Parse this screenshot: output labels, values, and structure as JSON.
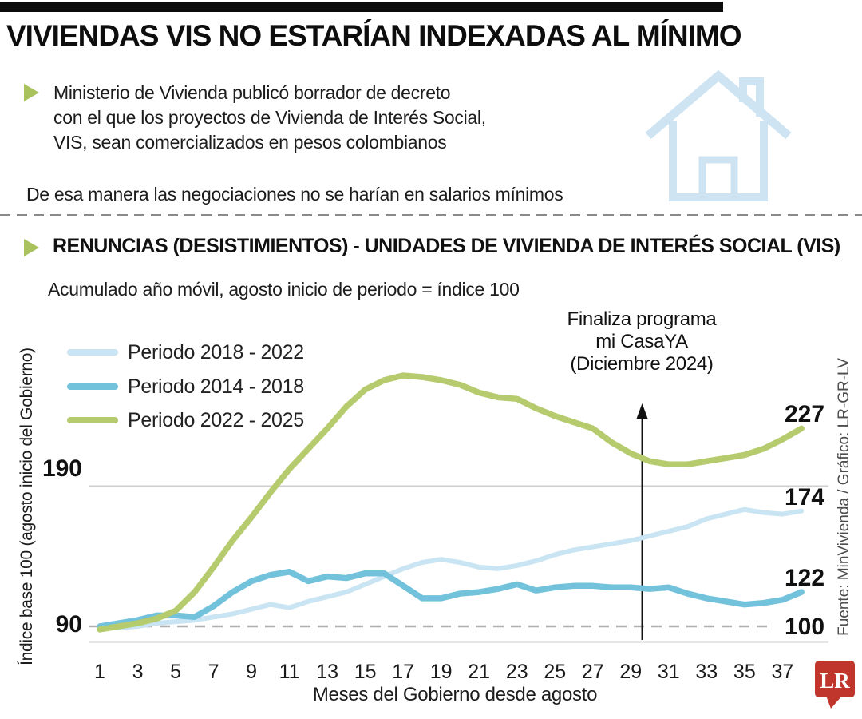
{
  "colors": {
    "accent_green": "#a9c25d",
    "house_blue": "#cfe4f2",
    "lr_red": "#c0362c",
    "series_light_blue": "#c9e4f2",
    "series_mid_blue": "#72c2dc",
    "series_green": "#b6cb6e"
  },
  "header": {
    "title": "VIVIENDAS VIS NO ESTARÍAN INDEXADAS AL MÍNIMO",
    "bullet_lines": [
      "Ministerio de Vivienda publicó borrador de decreto",
      "con el que los proyectos de Vivienda de Interés Social,",
      "VIS, sean comercializados en pesos colombianos"
    ],
    "note": "De esa manera las negociaciones no se harían en salarios mínimos"
  },
  "section": {
    "title": "RENUNCIAS (DESISTIMIENTOS) - UNIDADES DE VIVIENDA DE INTERÉS SOCIAL (VIS)",
    "subtitle": "Acumulado año móvil, agosto inicio de periodo = índice 100"
  },
  "chart_data": {
    "type": "line",
    "xlabel": "Meses del Gobierno desde agosto",
    "ylabel": "Índice base 100 (agosto inicio del Gobierno)",
    "x_ticks": [
      1,
      3,
      5,
      7,
      9,
      11,
      13,
      15,
      17,
      19,
      21,
      23,
      25,
      27,
      29,
      31,
      33,
      35,
      37
    ],
    "y_ticks": [
      190,
      90
    ],
    "ylim": [
      90,
      265
    ],
    "baseline": 100,
    "baseline_label": "100",
    "grid": "horizontal-sparse",
    "legend_position": "top-left",
    "x": [
      1,
      2,
      3,
      4,
      5,
      6,
      7,
      8,
      9,
      10,
      11,
      12,
      13,
      14,
      15,
      16,
      17,
      18,
      19,
      20,
      21,
      22,
      23,
      24,
      25,
      26,
      27,
      28,
      29,
      30,
      31,
      32,
      33,
      34,
      35,
      36,
      37,
      38
    ],
    "series": [
      {
        "name": "Periodo 2018 - 2022",
        "color": "#c9e4f2",
        "end_label": "174",
        "values": [
          100,
          99,
          100,
          102,
          103,
          104,
          106,
          108,
          111,
          114,
          112,
          116,
          119,
          122,
          127,
          132,
          137,
          141,
          143,
          141,
          138,
          137,
          139,
          142,
          146,
          149,
          151,
          153,
          155,
          158,
          161,
          164,
          169,
          172,
          175,
          173,
          172,
          174
        ]
      },
      {
        "name": "Periodo 2014 - 2018",
        "color": "#72c2dc",
        "end_label": "122",
        "values": [
          100,
          102,
          104,
          107,
          107,
          106,
          113,
          122,
          129,
          133,
          135,
          129,
          132,
          131,
          134,
          134,
          126,
          118,
          118,
          121,
          122,
          124,
          127,
          123,
          125,
          126,
          126,
          125,
          125,
          124,
          125,
          121,
          118,
          116,
          114,
          115,
          117,
          122
        ]
      },
      {
        "name": "Periodo 2022 - 2025",
        "color": "#b6cb6e",
        "end_label": "227",
        "values": [
          98,
          100,
          102,
          105,
          110,
          122,
          138,
          155,
          170,
          186,
          201,
          214,
          227,
          241,
          252,
          258,
          261,
          260,
          258,
          255,
          250,
          247,
          246,
          240,
          235,
          231,
          227,
          218,
          211,
          206,
          204,
          204,
          206,
          208,
          210,
          214,
          220,
          227
        ]
      }
    ],
    "annotation": {
      "lines": [
        "Finaliza programa",
        "mi CasaYA",
        "(Diciembre 2024)"
      ],
      "arrow_month": 29.6
    }
  },
  "footer": {
    "source": "Fuente: MinVivienda / Gráfico: LR-GR-LV",
    "logo_text": "LR"
  }
}
